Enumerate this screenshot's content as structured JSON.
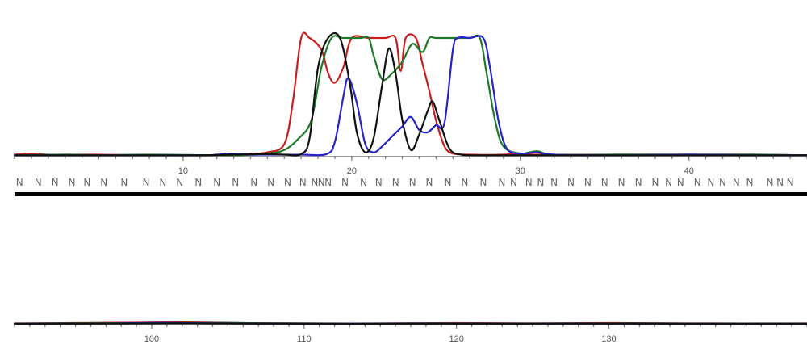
{
  "chart_data": [
    {
      "type": "line",
      "panel": "upper",
      "x_range": [
        0,
        47
      ],
      "y_range": [
        0,
        100
      ],
      "clipped_at": 100,
      "grid": false,
      "tick_labels": [
        {
          "x": 10,
          "label": "10"
        },
        {
          "x": 20,
          "label": "20"
        },
        {
          "x": 30,
          "label": "30"
        },
        {
          "x": 40,
          "label": "40"
        }
      ],
      "base_calls": [
        {
          "x": 0.3,
          "base": "N"
        },
        {
          "x": 1.4,
          "base": "N"
        },
        {
          "x": 2.4,
          "base": "N"
        },
        {
          "x": 3.4,
          "base": "N"
        },
        {
          "x": 4.3,
          "base": "N"
        },
        {
          "x": 5.3,
          "base": "N"
        },
        {
          "x": 6.5,
          "base": "N"
        },
        {
          "x": 7.8,
          "base": "N"
        },
        {
          "x": 8.8,
          "base": "N"
        },
        {
          "x": 9.8,
          "base": "N"
        },
        {
          "x": 10.9,
          "base": "N"
        },
        {
          "x": 12.0,
          "base": "N"
        },
        {
          "x": 13.1,
          "base": "N"
        },
        {
          "x": 14.2,
          "base": "N"
        },
        {
          "x": 15.2,
          "base": "N"
        },
        {
          "x": 16.2,
          "base": "N"
        },
        {
          "x": 17.1,
          "base": "N"
        },
        {
          "x": 17.8,
          "base": "N"
        },
        {
          "x": 18.2,
          "base": "N"
        },
        {
          "x": 18.6,
          "base": "N"
        },
        {
          "x": 19.6,
          "base": "N"
        },
        {
          "x": 20.7,
          "base": "N"
        },
        {
          "x": 21.6,
          "base": "N"
        },
        {
          "x": 22.6,
          "base": "N"
        },
        {
          "x": 23.6,
          "base": "N"
        },
        {
          "x": 24.6,
          "base": "N"
        },
        {
          "x": 25.7,
          "base": "N"
        },
        {
          "x": 26.7,
          "base": "N"
        },
        {
          "x": 27.8,
          "base": "N"
        },
        {
          "x": 28.9,
          "base": "N"
        },
        {
          "x": 29.6,
          "base": "N"
        },
        {
          "x": 30.5,
          "base": "N"
        },
        {
          "x": 31.2,
          "base": "N"
        },
        {
          "x": 32.0,
          "base": "N"
        },
        {
          "x": 33.0,
          "base": "N"
        },
        {
          "x": 34.0,
          "base": "N"
        },
        {
          "x": 35.0,
          "base": "N"
        },
        {
          "x": 36.0,
          "base": "N"
        },
        {
          "x": 37.0,
          "base": "N"
        },
        {
          "x": 38.0,
          "base": "N"
        },
        {
          "x": 38.8,
          "base": "N"
        },
        {
          "x": 39.5,
          "base": "N"
        },
        {
          "x": 40.5,
          "base": "N"
        },
        {
          "x": 41.3,
          "base": "N"
        },
        {
          "x": 42.0,
          "base": "N"
        },
        {
          "x": 42.8,
          "base": "N"
        },
        {
          "x": 43.6,
          "base": "N"
        },
        {
          "x": 44.8,
          "base": "N"
        },
        {
          "x": 45.4,
          "base": "N"
        },
        {
          "x": 46.0,
          "base": "N"
        }
      ],
      "series": [
        {
          "color": "#c81e1e",
          "points": [
            [
              0,
              1
            ],
            [
              1,
              2
            ],
            [
              2,
              1
            ],
            [
              3,
              1
            ],
            [
              5,
              1
            ],
            [
              8,
              0.5
            ],
            [
              13,
              0.5
            ],
            [
              14,
              1.5
            ],
            [
              15,
              3
            ],
            [
              16,
              10
            ],
            [
              16.5,
              45
            ],
            [
              17,
              100
            ],
            [
              17.5,
              100
            ],
            [
              18.2,
              90
            ],
            [
              18.6,
              70
            ],
            [
              19,
              62
            ],
            [
              19.5,
              75
            ],
            [
              20,
              100
            ],
            [
              21,
              100
            ],
            [
              22,
              100
            ],
            [
              22.6,
              100
            ],
            [
              22.9,
              72
            ],
            [
              23.2,
              100
            ],
            [
              23.8,
              100
            ],
            [
              24.2,
              78
            ],
            [
              24.6,
              55
            ],
            [
              25,
              30
            ],
            [
              25.5,
              8
            ],
            [
              26,
              2
            ],
            [
              27,
              1
            ],
            [
              29,
              1
            ],
            [
              30,
              2
            ],
            [
              31,
              1
            ],
            [
              35,
              1
            ],
            [
              40,
              1
            ],
            [
              44,
              1
            ],
            [
              47,
              0.5
            ]
          ]
        },
        {
          "color": "#1e7a28",
          "points": [
            [
              0,
              0.5
            ],
            [
              3,
              1
            ],
            [
              5,
              0.5
            ],
            [
              8,
              1
            ],
            [
              13,
              0.5
            ],
            [
              15,
              2
            ],
            [
              16,
              5
            ],
            [
              16.8,
              14
            ],
            [
              17.6,
              30
            ],
            [
              18.2,
              75
            ],
            [
              18.8,
              100
            ],
            [
              19.5,
              100
            ],
            [
              20.5,
              100
            ],
            [
              21,
              100
            ],
            [
              21.3,
              85
            ],
            [
              21.8,
              65
            ],
            [
              22.4,
              70
            ],
            [
              23,
              80
            ],
            [
              23.6,
              95
            ],
            [
              24.2,
              88
            ],
            [
              24.6,
              100
            ],
            [
              25,
              100
            ],
            [
              26,
              100
            ],
            [
              27,
              100
            ],
            [
              27.6,
              100
            ],
            [
              28,
              70
            ],
            [
              28.5,
              30
            ],
            [
              29,
              8
            ],
            [
              30,
              2
            ],
            [
              31,
              4
            ],
            [
              32,
              1
            ],
            [
              36,
              1
            ],
            [
              40,
              1
            ],
            [
              44,
              1
            ],
            [
              47,
              0.5
            ]
          ]
        },
        {
          "color": "#2424c8",
          "points": [
            [
              0,
              0.5
            ],
            [
              3,
              0.5
            ],
            [
              6,
              0.5
            ],
            [
              11,
              0.5
            ],
            [
              12,
              1
            ],
            [
              13,
              2
            ],
            [
              14,
              1
            ],
            [
              15,
              1
            ],
            [
              17,
              1
            ],
            [
              18.5,
              1.5
            ],
            [
              19,
              12
            ],
            [
              19.5,
              50
            ],
            [
              19.8,
              66
            ],
            [
              20.3,
              45
            ],
            [
              20.8,
              10
            ],
            [
              21.3,
              3
            ],
            [
              21.8,
              8
            ],
            [
              22.5,
              18
            ],
            [
              23,
              25
            ],
            [
              23.5,
              33
            ],
            [
              24,
              22
            ],
            [
              24.5,
              20
            ],
            [
              25,
              26
            ],
            [
              25.5,
              28
            ],
            [
              26,
              90
            ],
            [
              26.3,
              100
            ],
            [
              27,
              100
            ],
            [
              27.8,
              100
            ],
            [
              28.2,
              75
            ],
            [
              28.7,
              30
            ],
            [
              29.2,
              6
            ],
            [
              30,
              2
            ],
            [
              31,
              3
            ],
            [
              32,
              1
            ],
            [
              36,
              0.5
            ],
            [
              40,
              1
            ],
            [
              44,
              0.5
            ],
            [
              47,
              0.5
            ]
          ]
        },
        {
          "color": "#111111",
          "points": [
            [
              0,
              0.5
            ],
            [
              3,
              0.5
            ],
            [
              6,
              0.5
            ],
            [
              11,
              0.5
            ],
            [
              13,
              1
            ],
            [
              15,
              1.5
            ],
            [
              16,
              1
            ],
            [
              17,
              1.5
            ],
            [
              17.5,
              15
            ],
            [
              18,
              75
            ],
            [
              18.6,
              100
            ],
            [
              19.3,
              100
            ],
            [
              19.9,
              60
            ],
            [
              20.3,
              20
            ],
            [
              20.8,
              3
            ],
            [
              21.3,
              15
            ],
            [
              21.8,
              60
            ],
            [
              22.2,
              91
            ],
            [
              22.6,
              70
            ],
            [
              23,
              30
            ],
            [
              23.5,
              5
            ],
            [
              24,
              18
            ],
            [
              24.5,
              38
            ],
            [
              24.8,
              46
            ],
            [
              25.2,
              30
            ],
            [
              25.8,
              6
            ],
            [
              26.5,
              1
            ],
            [
              27.5,
              0.5
            ],
            [
              29,
              0.5
            ],
            [
              31,
              0.5
            ],
            [
              34,
              0.5
            ],
            [
              40,
              0.5
            ],
            [
              44,
              0.5
            ],
            [
              47,
              0.5
            ]
          ]
        }
      ]
    },
    {
      "type": "line",
      "panel": "lower",
      "x_range": [
        91,
        143
      ],
      "y_range": [
        0,
        100
      ],
      "grid": false,
      "tick_labels": [
        {
          "x": 100,
          "label": "100"
        },
        {
          "x": 110,
          "label": "110"
        },
        {
          "x": 120,
          "label": "120"
        },
        {
          "x": 130,
          "label": "130"
        }
      ],
      "series": [
        {
          "color": "#c81e1e",
          "points": [
            [
              91,
              0.5
            ],
            [
              95,
              1
            ],
            [
              99,
              1.5
            ],
            [
              102,
              2
            ],
            [
              106,
              1
            ],
            [
              110,
              0.5
            ],
            [
              115,
              0.5
            ],
            [
              120,
              1
            ],
            [
              125,
              0.5
            ],
            [
              130,
              1
            ],
            [
              135,
              0.5
            ],
            [
              143,
              0.5
            ]
          ]
        },
        {
          "color": "#1e7a28",
          "points": [
            [
              91,
              0.3
            ],
            [
              96,
              0.8
            ],
            [
              100,
              1
            ],
            [
              104,
              1.2
            ],
            [
              108,
              0.6
            ],
            [
              113,
              0.4
            ],
            [
              118,
              0.6
            ],
            [
              124,
              0.4
            ],
            [
              131,
              0.6
            ],
            [
              136,
              0.3
            ],
            [
              143,
              0.3
            ]
          ]
        },
        {
          "color": "#2424c8",
          "points": [
            [
              91,
              0.2
            ],
            [
              97,
              0.5
            ],
            [
              100,
              1.2
            ],
            [
              103,
              0.8
            ],
            [
              107,
              0.4
            ],
            [
              112,
              0.2
            ],
            [
              120,
              0.4
            ],
            [
              128,
              0.3
            ],
            [
              135,
              0.2
            ],
            [
              143,
              0.2
            ]
          ]
        },
        {
          "color": "#111111",
          "points": [
            [
              91,
              0.2
            ],
            [
              98,
              0.4
            ],
            [
              102,
              0.6
            ],
            [
              106,
              0.3
            ],
            [
              112,
              0.2
            ],
            [
              120,
              0.2
            ],
            [
              130,
              0.3
            ],
            [
              143,
              0.2
            ]
          ]
        }
      ]
    }
  ]
}
